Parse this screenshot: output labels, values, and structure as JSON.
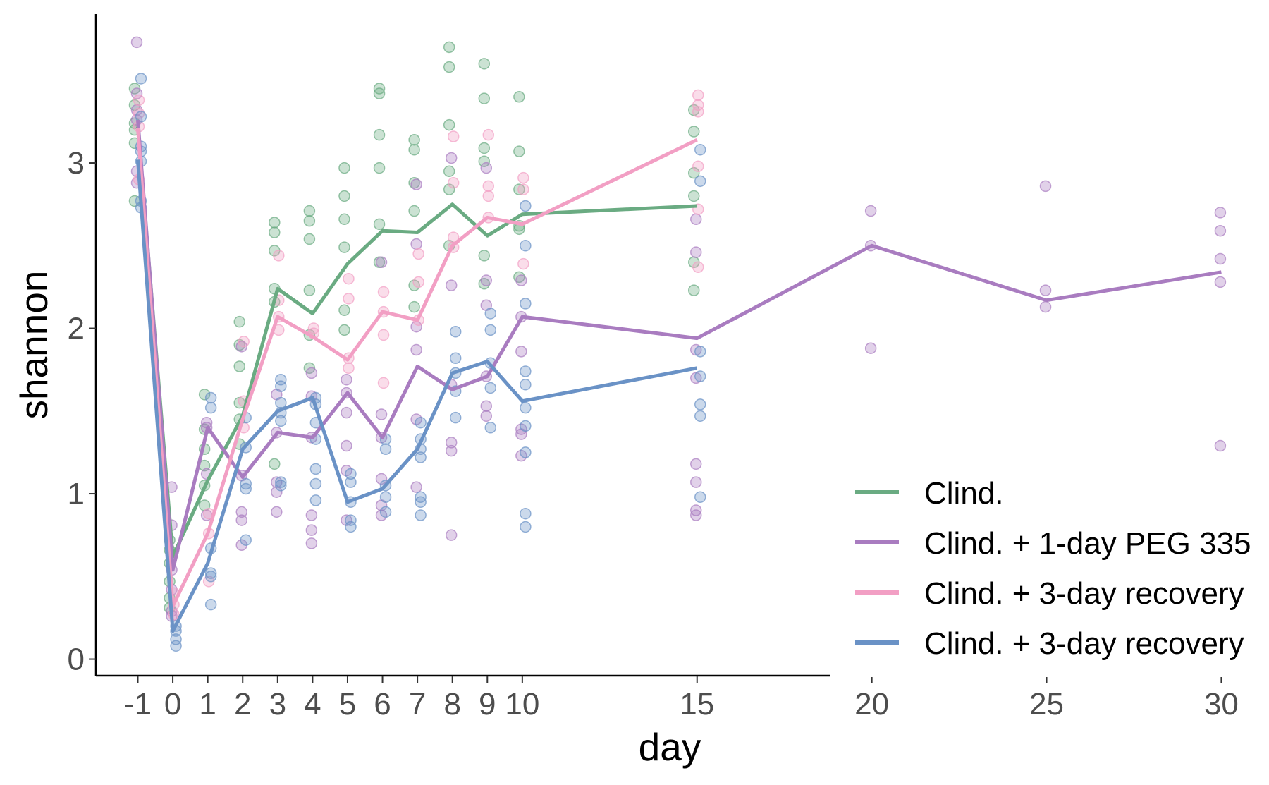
{
  "chart_data": {
    "type": "line",
    "xlabel": "day",
    "ylabel": "shannon",
    "x_ticks": [
      -1,
      0,
      1,
      2,
      3,
      4,
      5,
      6,
      7,
      8,
      9,
      10,
      15,
      20,
      25,
      30
    ],
    "x_tick_labels": [
      "-1",
      "0",
      "1",
      "2",
      "3",
      "4",
      "5",
      "6",
      "7",
      "8",
      "9",
      "10",
      "15",
      "20",
      "25",
      "30"
    ],
    "xlim": [
      -2.2,
      31
    ],
    "y_ticks": [
      0,
      1,
      2,
      3
    ],
    "y_tick_labels": [
      "0",
      "1",
      "2",
      "3"
    ],
    "ylim": [
      -0.1,
      3.9
    ],
    "grid": false,
    "legend_position": "bottom-right",
    "series": [
      {
        "name": "Clind.",
        "color": "#6aab82",
        "x": [
          -1,
          0,
          1,
          2,
          3,
          4,
          5,
          6,
          7,
          8,
          9,
          10,
          15
        ],
        "y": [
          3.22,
          0.62,
          1.08,
          1.47,
          2.24,
          2.09,
          2.39,
          2.59,
          2.58,
          2.75,
          2.56,
          2.69,
          2.74
        ],
        "points": [
          [
            -1,
            3.45
          ],
          [
            -1,
            3.35
          ],
          [
            -1,
            3.24
          ],
          [
            -1,
            3.2
          ],
          [
            -1,
            3.12
          ],
          [
            -1,
            2.77
          ],
          [
            0,
            0.72
          ],
          [
            0,
            0.66
          ],
          [
            0,
            0.58
          ],
          [
            0,
            0.47
          ],
          [
            0,
            0.37
          ],
          [
            0,
            0.31
          ],
          [
            1,
            1.6
          ],
          [
            1,
            1.39
          ],
          [
            1,
            1.27
          ],
          [
            1,
            1.17
          ],
          [
            1,
            1.05
          ],
          [
            1,
            0.93
          ],
          [
            2,
            2.04
          ],
          [
            2,
            1.9
          ],
          [
            2,
            1.77
          ],
          [
            2,
            1.55
          ],
          [
            2,
            1.45
          ],
          [
            2,
            1.3
          ],
          [
            3,
            2.64
          ],
          [
            3,
            2.58
          ],
          [
            3,
            2.47
          ],
          [
            3,
            2.24
          ],
          [
            3,
            2.16
          ],
          [
            3,
            1.18
          ],
          [
            4,
            2.71
          ],
          [
            4,
            2.65
          ],
          [
            4,
            2.54
          ],
          [
            4,
            2.23
          ],
          [
            4,
            1.96
          ],
          [
            4,
            1.76
          ],
          [
            5,
            2.97
          ],
          [
            5,
            2.8
          ],
          [
            5,
            2.66
          ],
          [
            5,
            2.49
          ],
          [
            5,
            2.11
          ],
          [
            5,
            1.99
          ],
          [
            6,
            3.45
          ],
          [
            6,
            3.42
          ],
          [
            6,
            3.17
          ],
          [
            6,
            2.97
          ],
          [
            6,
            2.63
          ],
          [
            6,
            2.4
          ],
          [
            7,
            3.14
          ],
          [
            7,
            3.08
          ],
          [
            7,
            2.88
          ],
          [
            7,
            2.71
          ],
          [
            7,
            2.26
          ],
          [
            7,
            2.13
          ],
          [
            8,
            3.7
          ],
          [
            8,
            3.58
          ],
          [
            8,
            3.23
          ],
          [
            8,
            2.95
          ],
          [
            8,
            2.84
          ],
          [
            8,
            2.5
          ],
          [
            9,
            3.6
          ],
          [
            9,
            3.39
          ],
          [
            9,
            3.09
          ],
          [
            9,
            3.01
          ],
          [
            9,
            2.44
          ],
          [
            9,
            2.27
          ],
          [
            10,
            3.4
          ],
          [
            10,
            3.07
          ],
          [
            10,
            2.84
          ],
          [
            10,
            2.6
          ],
          [
            10,
            2.31
          ],
          [
            10,
            2.62
          ],
          [
            15,
            3.32
          ],
          [
            15,
            3.19
          ],
          [
            15,
            2.94
          ],
          [
            15,
            2.8
          ],
          [
            15,
            2.4
          ],
          [
            15,
            2.23
          ]
        ]
      },
      {
        "name": "Clind. + 1-day PEG 335",
        "color": "#a97cc0",
        "x": [
          -1,
          0,
          1,
          2,
          3,
          4,
          5,
          6,
          7,
          8,
          9,
          10,
          15,
          20,
          25,
          30
        ],
        "y": [
          3.26,
          0.54,
          1.4,
          1.1,
          1.37,
          1.34,
          1.61,
          1.34,
          1.77,
          1.63,
          1.71,
          2.07,
          1.94,
          2.5,
          2.17,
          2.34
        ],
        "points": [
          [
            -1,
            3.73
          ],
          [
            -1,
            3.42
          ],
          [
            -1,
            3.32
          ],
          [
            -1,
            3.26
          ],
          [
            -1,
            2.95
          ],
          [
            -1,
            2.88
          ],
          [
            0,
            1.04
          ],
          [
            0,
            0.81
          ],
          [
            0,
            0.54
          ],
          [
            0,
            0.42
          ],
          [
            0,
            0.29
          ],
          [
            0,
            0.26
          ],
          [
            1,
            1.43
          ],
          [
            1,
            1.4
          ],
          [
            1,
            1.12
          ],
          [
            1,
            0.87
          ],
          [
            2,
            1.89
          ],
          [
            2,
            1.11
          ],
          [
            2,
            0.89
          ],
          [
            2,
            0.84
          ],
          [
            2,
            0.69
          ],
          [
            3,
            1.6
          ],
          [
            3,
            1.37
          ],
          [
            3,
            1.07
          ],
          [
            3,
            1.01
          ],
          [
            3,
            0.89
          ],
          [
            4,
            1.73
          ],
          [
            4,
            1.59
          ],
          [
            4,
            1.34
          ],
          [
            4,
            0.87
          ],
          [
            4,
            0.78
          ],
          [
            4,
            0.7
          ],
          [
            5,
            1.69
          ],
          [
            5,
            1.61
          ],
          [
            5,
            1.49
          ],
          [
            5,
            1.29
          ],
          [
            5,
            1.14
          ],
          [
            5,
            0.84
          ],
          [
            6,
            2.4
          ],
          [
            6,
            1.48
          ],
          [
            6,
            1.34
          ],
          [
            6,
            1.09
          ],
          [
            6,
            0.93
          ],
          [
            6,
            0.87
          ],
          [
            7,
            2.87
          ],
          [
            7,
            2.51
          ],
          [
            7,
            2.01
          ],
          [
            7,
            1.87
          ],
          [
            7,
            1.45
          ],
          [
            7,
            1.04
          ],
          [
            8,
            3.03
          ],
          [
            8,
            2.26
          ],
          [
            8,
            1.66
          ],
          [
            8,
            1.31
          ],
          [
            8,
            1.26
          ],
          [
            8,
            0.75
          ],
          [
            9,
            2.97
          ],
          [
            9,
            2.29
          ],
          [
            9,
            2.14
          ],
          [
            9,
            1.71
          ],
          [
            9,
            1.53
          ],
          [
            9,
            1.47
          ],
          [
            10,
            2.29
          ],
          [
            10,
            2.07
          ],
          [
            10,
            1.86
          ],
          [
            10,
            1.39
          ],
          [
            10,
            1.36
          ],
          [
            10,
            1.23
          ],
          [
            15,
            2.66
          ],
          [
            15,
            2.46
          ],
          [
            15,
            1.87
          ],
          [
            15,
            1.7
          ],
          [
            15,
            1.18
          ],
          [
            15,
            1.07
          ],
          [
            15,
            0.9
          ],
          [
            15,
            0.87
          ],
          [
            20,
            2.71
          ],
          [
            20,
            2.5
          ],
          [
            20,
            1.88
          ],
          [
            25,
            2.86
          ],
          [
            25,
            2.23
          ],
          [
            25,
            2.13
          ],
          [
            30,
            2.7
          ],
          [
            30,
            2.59
          ],
          [
            30,
            2.42
          ],
          [
            30,
            2.28
          ],
          [
            30,
            1.29
          ]
        ]
      },
      {
        "name": "Clind. + 3-day recovery",
        "color": "#f29fc4",
        "x": [
          -1,
          0,
          1,
          2,
          3,
          4,
          5,
          6,
          7,
          8,
          9,
          10,
          15
        ],
        "y": [
          3.21,
          0.32,
          0.76,
          1.45,
          2.07,
          1.95,
          1.81,
          2.1,
          2.05,
          2.5,
          2.67,
          2.63,
          3.14
        ],
        "points": [
          [
            -1,
            3.38
          ],
          [
            -1,
            3.3
          ],
          [
            -1,
            3.22
          ],
          [
            -1,
            2.9
          ],
          [
            0,
            0.4
          ],
          [
            0,
            0.33
          ],
          [
            0,
            0.27
          ],
          [
            1,
            0.88
          ],
          [
            1,
            0.76
          ],
          [
            1,
            0.47
          ],
          [
            2,
            1.92
          ],
          [
            2,
            1.56
          ],
          [
            2,
            1.4
          ],
          [
            3,
            2.44
          ],
          [
            3,
            2.17
          ],
          [
            3,
            2.07
          ],
          [
            3,
            1.99
          ],
          [
            4,
            2.0
          ],
          [
            4,
            1.97
          ],
          [
            5,
            2.3
          ],
          [
            5,
            2.18
          ],
          [
            5,
            1.82
          ],
          [
            5,
            1.76
          ],
          [
            6,
            2.22
          ],
          [
            6,
            2.1
          ],
          [
            6,
            1.96
          ],
          [
            6,
            1.67
          ],
          [
            7,
            2.45
          ],
          [
            7,
            2.28
          ],
          [
            7,
            2.05
          ],
          [
            8,
            3.16
          ],
          [
            8,
            2.88
          ],
          [
            8,
            2.55
          ],
          [
            8,
            2.49
          ],
          [
            9,
            3.17
          ],
          [
            9,
            2.86
          ],
          [
            9,
            2.8
          ],
          [
            9,
            2.67
          ],
          [
            10,
            2.91
          ],
          [
            10,
            2.84
          ],
          [
            10,
            2.39
          ],
          [
            15,
            3.41
          ],
          [
            15,
            3.35
          ],
          [
            15,
            3.31
          ],
          [
            15,
            2.98
          ],
          [
            15,
            2.72
          ],
          [
            15,
            2.37
          ]
        ]
      },
      {
        "name": "Clind. + 3-day recovery",
        "color": "#6a92c6",
        "x": [
          -1,
          0,
          1,
          2,
          3,
          4,
          5,
          6,
          7,
          8,
          9,
          10,
          15
        ],
        "y": [
          3.02,
          0.17,
          0.58,
          1.27,
          1.5,
          1.58,
          0.95,
          1.03,
          1.27,
          1.73,
          1.8,
          1.56,
          1.76
        ],
        "points": [
          [
            -1,
            3.51
          ],
          [
            -1,
            3.28
          ],
          [
            -1,
            3.1
          ],
          [
            -1,
            3.07
          ],
          [
            -1,
            3.01
          ],
          [
            -1,
            2.77
          ],
          [
            -1,
            2.73
          ],
          [
            0,
            0.2
          ],
          [
            0,
            0.17
          ],
          [
            0,
            0.12
          ],
          [
            0,
            0.08
          ],
          [
            1,
            1.58
          ],
          [
            1,
            1.52
          ],
          [
            1,
            0.67
          ],
          [
            1,
            0.52
          ],
          [
            1,
            0.5
          ],
          [
            1,
            0.33
          ],
          [
            2,
            1.46
          ],
          [
            2,
            1.28
          ],
          [
            2,
            1.06
          ],
          [
            2,
            1.03
          ],
          [
            2,
            0.72
          ],
          [
            3,
            1.69
          ],
          [
            3,
            1.65
          ],
          [
            3,
            1.55
          ],
          [
            3,
            1.49
          ],
          [
            3,
            1.44
          ],
          [
            3,
            1.07
          ],
          [
            3,
            1.05
          ],
          [
            4,
            1.58
          ],
          [
            4,
            1.54
          ],
          [
            4,
            1.43
          ],
          [
            4,
            1.33
          ],
          [
            4,
            1.15
          ],
          [
            4,
            1.06
          ],
          [
            4,
            0.96
          ],
          [
            5,
            1.12
          ],
          [
            5,
            1.07
          ],
          [
            5,
            0.95
          ],
          [
            5,
            0.84
          ],
          [
            5,
            0.8
          ],
          [
            6,
            1.33
          ],
          [
            6,
            1.27
          ],
          [
            6,
            1.05
          ],
          [
            6,
            0.98
          ],
          [
            6,
            0.89
          ],
          [
            7,
            1.43
          ],
          [
            7,
            1.33
          ],
          [
            7,
            1.27
          ],
          [
            7,
            1.22
          ],
          [
            7,
            0.98
          ],
          [
            7,
            0.95
          ],
          [
            7,
            0.87
          ],
          [
            8,
            1.98
          ],
          [
            8,
            1.82
          ],
          [
            8,
            1.73
          ],
          [
            8,
            1.62
          ],
          [
            8,
            1.46
          ],
          [
            9,
            2.09
          ],
          [
            9,
            1.99
          ],
          [
            9,
            1.79
          ],
          [
            9,
            1.64
          ],
          [
            9,
            1.4
          ],
          [
            10,
            2.74
          ],
          [
            10,
            2.5
          ],
          [
            10,
            2.15
          ],
          [
            10,
            1.74
          ],
          [
            10,
            1.66
          ],
          [
            10,
            1.52
          ],
          [
            10,
            1.41
          ],
          [
            10,
            1.25
          ],
          [
            10,
            0.88
          ],
          [
            10,
            0.8
          ],
          [
            15,
            3.08
          ],
          [
            15,
            2.89
          ],
          [
            15,
            1.86
          ],
          [
            15,
            1.71
          ],
          [
            15,
            1.54
          ],
          [
            15,
            1.47
          ],
          [
            15,
            0.98
          ]
        ]
      }
    ]
  }
}
